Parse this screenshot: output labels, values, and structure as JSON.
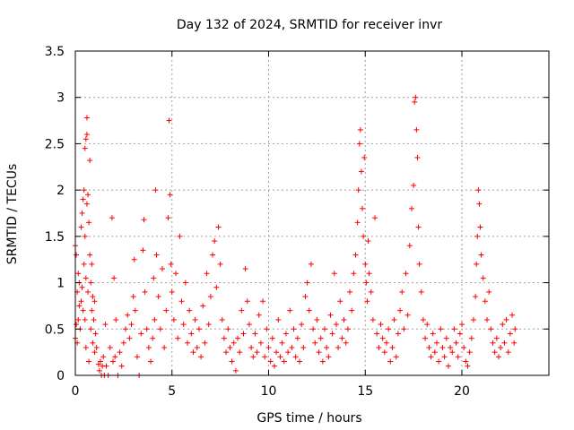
{
  "chart_data": {
    "type": "scatter",
    "title": "Day 132 of 2024, SRMTID for receiver invr",
    "xlabel": "GPS time / hours",
    "ylabel": "SRMTID / TECUs",
    "xlim": [
      0,
      24.5
    ],
    "ylim": [
      0,
      3.5
    ],
    "xticks": [
      0,
      5,
      10,
      15,
      20
    ],
    "yticks": [
      0,
      0.5,
      1,
      1.5,
      2,
      2.5,
      3,
      3.5
    ],
    "xtick_labels": [
      "0",
      "5",
      "10",
      "15",
      "20"
    ],
    "ytick_labels": [
      "0",
      "0.5",
      "1",
      "1.5",
      "2",
      "2.5",
      "3",
      "3.5"
    ],
    "grid": true,
    "marker": "+",
    "series": [
      {
        "name": "SRMTID",
        "color": "#ff0000",
        "points": [
          [
            0.0,
            0.4
          ],
          [
            0.0,
            1.4
          ],
          [
            0.05,
            0.55
          ],
          [
            0.05,
            1.3
          ],
          [
            0.1,
            0.9
          ],
          [
            0.1,
            0.35
          ],
          [
            0.15,
            1.1
          ],
          [
            0.15,
            0.6
          ],
          [
            0.2,
            0.75
          ],
          [
            0.2,
            1.0
          ],
          [
            0.25,
            0.5
          ],
          [
            0.3,
            0.8
          ],
          [
            0.3,
            1.6
          ],
          [
            0.35,
            0.95
          ],
          [
            0.35,
            1.75
          ],
          [
            0.4,
            1.9
          ],
          [
            0.4,
            0.7
          ],
          [
            0.45,
            2.0
          ],
          [
            0.45,
            1.2
          ],
          [
            0.5,
            0.6
          ],
          [
            0.5,
            1.5
          ],
          [
            0.5,
            2.45
          ],
          [
            0.55,
            2.55
          ],
          [
            0.55,
            1.05
          ],
          [
            0.55,
            0.3
          ],
          [
            0.6,
            2.6
          ],
          [
            0.6,
            2.78
          ],
          [
            0.6,
            1.85
          ],
          [
            0.65,
            1.95
          ],
          [
            0.65,
            0.9
          ],
          [
            0.7,
            1.65
          ],
          [
            0.7,
            0.15
          ],
          [
            0.75,
            2.32
          ],
          [
            0.75,
            1.3
          ],
          [
            0.8,
            1.0
          ],
          [
            0.8,
            0.5
          ],
          [
            0.85,
            0.7
          ],
          [
            0.85,
            1.2
          ],
          [
            0.9,
            0.35
          ],
          [
            0.9,
            0.85
          ],
          [
            0.95,
            0.6
          ],
          [
            1.0,
            0.25
          ],
          [
            1.0,
            0.8
          ],
          [
            1.05,
            0.45
          ],
          [
            1.1,
            0.3
          ],
          [
            1.2,
            0.12
          ],
          [
            1.25,
            0.05
          ],
          [
            1.3,
            0.15
          ],
          [
            1.35,
            0.0
          ],
          [
            1.4,
            0.1
          ],
          [
            1.45,
            0.2
          ],
          [
            1.5,
            0.0
          ],
          [
            1.55,
            0.55
          ],
          [
            1.6,
            0.1
          ],
          [
            1.7,
            0.0
          ],
          [
            1.8,
            0.3
          ],
          [
            1.9,
            1.7
          ],
          [
            1.95,
            0.15
          ],
          [
            2.0,
            1.05
          ],
          [
            2.05,
            0.2
          ],
          [
            2.1,
            0.6
          ],
          [
            2.2,
            0.0
          ],
          [
            2.3,
            0.25
          ],
          [
            2.4,
            0.1
          ],
          [
            2.5,
            0.35
          ],
          [
            2.6,
            0.5
          ],
          [
            2.7,
            0.65
          ],
          [
            2.8,
            0.4
          ],
          [
            2.9,
            0.55
          ],
          [
            3.0,
            0.85
          ],
          [
            3.05,
            1.25
          ],
          [
            3.1,
            0.7
          ],
          [
            3.2,
            0.2
          ],
          [
            3.3,
            0.0
          ],
          [
            3.4,
            0.45
          ],
          [
            3.5,
            1.35
          ],
          [
            3.55,
            1.68
          ],
          [
            3.6,
            0.9
          ],
          [
            3.7,
            0.5
          ],
          [
            3.8,
            0.3
          ],
          [
            3.9,
            0.15
          ],
          [
            4.0,
            0.4
          ],
          [
            4.05,
            1.05
          ],
          [
            4.1,
            0.6
          ],
          [
            4.15,
            2.0
          ],
          [
            4.2,
            1.3
          ],
          [
            4.3,
            0.85
          ],
          [
            4.4,
            0.5
          ],
          [
            4.5,
            1.15
          ],
          [
            4.6,
            0.3
          ],
          [
            4.7,
            0.7
          ],
          [
            4.8,
            1.7
          ],
          [
            4.85,
            2.75
          ],
          [
            4.9,
            1.95
          ],
          [
            4.95,
            1.2
          ],
          [
            5.0,
            0.9
          ],
          [
            5.1,
            0.6
          ],
          [
            5.2,
            1.1
          ],
          [
            5.3,
            0.4
          ],
          [
            5.4,
            1.5
          ],
          [
            5.5,
            0.8
          ],
          [
            5.6,
            0.55
          ],
          [
            5.7,
            1.0
          ],
          [
            5.8,
            0.35
          ],
          [
            5.9,
            0.7
          ],
          [
            6.0,
            0.45
          ],
          [
            6.1,
            0.25
          ],
          [
            6.2,
            0.6
          ],
          [
            6.3,
            0.3
          ],
          [
            6.4,
            0.5
          ],
          [
            6.5,
            0.2
          ],
          [
            6.6,
            0.75
          ],
          [
            6.7,
            0.35
          ],
          [
            6.8,
            1.1
          ],
          [
            6.9,
            0.55
          ],
          [
            7.0,
            0.85
          ],
          [
            7.1,
            1.3
          ],
          [
            7.2,
            1.45
          ],
          [
            7.3,
            0.95
          ],
          [
            7.4,
            1.6
          ],
          [
            7.5,
            1.2
          ],
          [
            7.6,
            0.6
          ],
          [
            7.7,
            0.4
          ],
          [
            7.8,
            0.25
          ],
          [
            7.9,
            0.5
          ],
          [
            8.0,
            0.3
          ],
          [
            8.1,
            0.15
          ],
          [
            8.2,
            0.35
          ],
          [
            8.3,
            0.05
          ],
          [
            8.4,
            0.4
          ],
          [
            8.5,
            0.25
          ],
          [
            8.6,
            0.7
          ],
          [
            8.7,
            0.45
          ],
          [
            8.8,
            1.15
          ],
          [
            8.9,
            0.8
          ],
          [
            9.0,
            0.55
          ],
          [
            9.1,
            0.3
          ],
          [
            9.2,
            0.2
          ],
          [
            9.3,
            0.45
          ],
          [
            9.4,
            0.25
          ],
          [
            9.5,
            0.65
          ],
          [
            9.6,
            0.35
          ],
          [
            9.7,
            0.8
          ],
          [
            9.8,
            0.2
          ],
          [
            9.9,
            0.5
          ],
          [
            10.0,
            0.3
          ],
          [
            10.1,
            0.15
          ],
          [
            10.2,
            0.4
          ],
          [
            10.3,
            0.1
          ],
          [
            10.4,
            0.25
          ],
          [
            10.5,
            0.6
          ],
          [
            10.6,
            0.2
          ],
          [
            10.7,
            0.35
          ],
          [
            10.8,
            0.15
          ],
          [
            10.9,
            0.45
          ],
          [
            11.0,
            0.25
          ],
          [
            11.1,
            0.7
          ],
          [
            11.2,
            0.3
          ],
          [
            11.3,
            0.5
          ],
          [
            11.4,
            0.2
          ],
          [
            11.5,
            0.4
          ],
          [
            11.6,
            0.15
          ],
          [
            11.7,
            0.55
          ],
          [
            11.8,
            0.3
          ],
          [
            11.9,
            0.85
          ],
          [
            12.0,
            1.0
          ],
          [
            12.1,
            0.7
          ],
          [
            12.2,
            1.2
          ],
          [
            12.3,
            0.5
          ],
          [
            12.4,
            0.35
          ],
          [
            12.5,
            0.6
          ],
          [
            12.6,
            0.25
          ],
          [
            12.7,
            0.4
          ],
          [
            12.8,
            0.15
          ],
          [
            12.9,
            0.5
          ],
          [
            13.0,
            0.3
          ],
          [
            13.1,
            0.2
          ],
          [
            13.2,
            0.65
          ],
          [
            13.3,
            0.45
          ],
          [
            13.4,
            1.1
          ],
          [
            13.5,
            0.55
          ],
          [
            13.6,
            0.3
          ],
          [
            13.7,
            0.8
          ],
          [
            13.8,
            0.4
          ],
          [
            13.9,
            0.6
          ],
          [
            14.0,
            0.35
          ],
          [
            14.1,
            0.5
          ],
          [
            14.2,
            0.9
          ],
          [
            14.3,
            0.7
          ],
          [
            14.4,
            1.1
          ],
          [
            14.5,
            1.3
          ],
          [
            14.6,
            1.65
          ],
          [
            14.65,
            2.0
          ],
          [
            14.7,
            2.5
          ],
          [
            14.75,
            2.65
          ],
          [
            14.8,
            2.2
          ],
          [
            14.85,
            1.8
          ],
          [
            14.9,
            1.5
          ],
          [
            14.95,
            2.35
          ],
          [
            15.0,
            1.2
          ],
          [
            15.05,
            1.0
          ],
          [
            15.1,
            0.8
          ],
          [
            15.15,
            1.45
          ],
          [
            15.2,
            1.1
          ],
          [
            15.3,
            0.9
          ],
          [
            15.4,
            0.6
          ],
          [
            15.5,
            1.7
          ],
          [
            15.6,
            0.45
          ],
          [
            15.7,
            0.3
          ],
          [
            15.8,
            0.55
          ],
          [
            15.9,
            0.4
          ],
          [
            16.0,
            0.25
          ],
          [
            16.1,
            0.35
          ],
          [
            16.2,
            0.5
          ],
          [
            16.3,
            0.15
          ],
          [
            16.4,
            0.3
          ],
          [
            16.5,
            0.6
          ],
          [
            16.6,
            0.2
          ],
          [
            16.7,
            0.45
          ],
          [
            16.8,
            0.7
          ],
          [
            16.9,
            0.9
          ],
          [
            17.0,
            0.5
          ],
          [
            17.1,
            1.1
          ],
          [
            17.2,
            0.65
          ],
          [
            17.3,
            1.4
          ],
          [
            17.4,
            1.8
          ],
          [
            17.5,
            2.05
          ],
          [
            17.55,
            2.95
          ],
          [
            17.6,
            3.0
          ],
          [
            17.65,
            2.65
          ],
          [
            17.7,
            2.35
          ],
          [
            17.75,
            1.6
          ],
          [
            17.8,
            1.2
          ],
          [
            17.9,
            0.9
          ],
          [
            18.0,
            0.6
          ],
          [
            18.1,
            0.4
          ],
          [
            18.2,
            0.55
          ],
          [
            18.3,
            0.3
          ],
          [
            18.4,
            0.2
          ],
          [
            18.5,
            0.45
          ],
          [
            18.6,
            0.25
          ],
          [
            18.7,
            0.35
          ],
          [
            18.8,
            0.15
          ],
          [
            18.9,
            0.5
          ],
          [
            19.0,
            0.3
          ],
          [
            19.1,
            0.2
          ],
          [
            19.2,
            0.4
          ],
          [
            19.3,
            0.1
          ],
          [
            19.4,
            0.3
          ],
          [
            19.5,
            0.25
          ],
          [
            19.6,
            0.5
          ],
          [
            19.7,
            0.35
          ],
          [
            19.8,
            0.2
          ],
          [
            19.9,
            0.45
          ],
          [
            20.0,
            0.55
          ],
          [
            20.1,
            0.3
          ],
          [
            20.2,
            0.15
          ],
          [
            20.3,
            0.1
          ],
          [
            20.4,
            0.25
          ],
          [
            20.5,
            0.4
          ],
          [
            20.6,
            0.6
          ],
          [
            20.7,
            0.85
          ],
          [
            20.75,
            1.2
          ],
          [
            20.8,
            1.5
          ],
          [
            20.85,
            2.0
          ],
          [
            20.9,
            1.85
          ],
          [
            20.95,
            1.6
          ],
          [
            21.0,
            1.3
          ],
          [
            21.1,
            1.05
          ],
          [
            21.2,
            0.8
          ],
          [
            21.3,
            0.6
          ],
          [
            21.4,
            0.9
          ],
          [
            21.5,
            0.5
          ],
          [
            21.6,
            0.35
          ],
          [
            21.7,
            0.25
          ],
          [
            21.8,
            0.4
          ],
          [
            21.9,
            0.2
          ],
          [
            22.0,
            0.3
          ],
          [
            22.1,
            0.55
          ],
          [
            22.2,
            0.35
          ],
          [
            22.3,
            0.6
          ],
          [
            22.4,
            0.25
          ],
          [
            22.5,
            0.45
          ],
          [
            22.6,
            0.65
          ],
          [
            22.7,
            0.35
          ],
          [
            22.75,
            0.5
          ]
        ]
      }
    ]
  }
}
